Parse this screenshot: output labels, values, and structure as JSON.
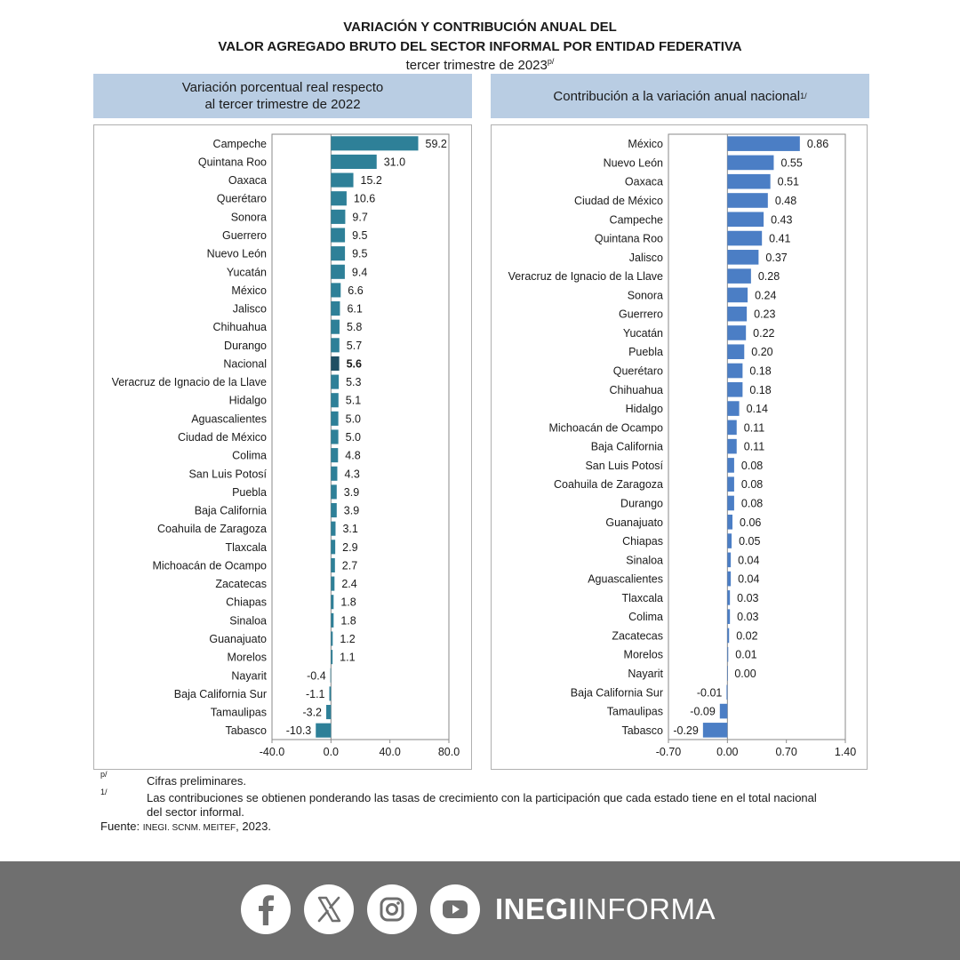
{
  "header": {
    "title_line1": "VARIACIÓN Y CONTRIBUCIÓN ANUAL DEL",
    "title_line2": "VALOR AGREGADO BRUTO DEL SECTOR INFORMAL POR ENTIDAD FEDERATIVA",
    "subtitle": "tercer trimestre de 2023",
    "subtitle_sup": "p/"
  },
  "left_panel": {
    "heading_line1": "Variación porcentual real respecto",
    "heading_line2": "al tercer trimestre de 2022"
  },
  "right_panel": {
    "heading": "Contribución a la variación anual nacional",
    "heading_sup": "1/"
  },
  "colors": {
    "left_bar": "#2e8098",
    "left_bar_highlight": "#1f4f63",
    "right_bar": "#4b7ec5",
    "panel_header": "#b9cde3",
    "footer": "#6f6f6f"
  },
  "chart_data": [
    {
      "type": "bar",
      "orientation": "horizontal",
      "highlight": "Nacional",
      "xlim": [
        -40,
        80
      ],
      "xticks": [
        "-40.0",
        "0.0",
        "40.0",
        "80.0"
      ],
      "categories": [
        "Campeche",
        "Quintana Roo",
        "Oaxaca",
        "Querétaro",
        "Sonora",
        "Guerrero",
        "Nuevo León",
        "Yucatán",
        "México",
        "Jalisco",
        "Chihuahua",
        "Durango",
        "Nacional",
        "Veracruz de Ignacio de la Llave",
        "Hidalgo",
        "Aguascalientes",
        "Ciudad de México",
        "Colima",
        "San Luis Potosí",
        "Puebla",
        "Baja California",
        "Coahuila de Zaragoza",
        "Tlaxcala",
        "Michoacán de Ocampo",
        "Zacatecas",
        "Chiapas",
        "Sinaloa",
        "Guanajuato",
        "Morelos",
        "Nayarit",
        "Baja California Sur",
        "Tamaulipas",
        "Tabasco"
      ],
      "values": [
        59.2,
        31.0,
        15.2,
        10.6,
        9.7,
        9.5,
        9.5,
        9.4,
        6.6,
        6.1,
        5.8,
        5.7,
        5.6,
        5.3,
        5.1,
        5.0,
        5.0,
        4.8,
        4.3,
        3.9,
        3.9,
        3.1,
        2.9,
        2.7,
        2.4,
        1.8,
        1.8,
        1.2,
        1.1,
        -0.4,
        -1.1,
        -3.2,
        -10.3
      ],
      "labels": [
        "59.2",
        "31.0",
        "15.2",
        "10.6",
        "9.7",
        "9.5",
        "9.5",
        "9.4",
        "6.6",
        "6.1",
        "5.8",
        "5.7",
        "5.6",
        "5.3",
        "5.1",
        "5.0",
        "5.0",
        "4.8",
        "4.3",
        "3.9",
        "3.9",
        "3.1",
        "2.9",
        "2.7",
        "2.4",
        "1.8",
        "1.8",
        "1.2",
        "1.1",
        "-0.4",
        "-1.1",
        "-3.2",
        "-10.3"
      ]
    },
    {
      "type": "bar",
      "orientation": "horizontal",
      "xlim": [
        -0.7,
        1.4
      ],
      "xticks": [
        "-0.70",
        "0.00",
        "0.70",
        "1.40"
      ],
      "categories": [
        "México",
        "Nuevo León",
        "Oaxaca",
        "Ciudad de México",
        "Campeche",
        "Quintana Roo",
        "Jalisco",
        "Veracruz de Ignacio de la Llave",
        "Sonora",
        "Guerrero",
        "Yucatán",
        "Puebla",
        "Querétaro",
        "Chihuahua",
        "Hidalgo",
        "Michoacán de Ocampo",
        "Baja California",
        "San Luis Potosí",
        "Coahuila de Zaragoza",
        "Durango",
        "Guanajuato",
        "Chiapas",
        "Sinaloa",
        "Aguascalientes",
        "Tlaxcala",
        "Colima",
        "Zacatecas",
        "Morelos",
        "Nayarit",
        "Baja California Sur",
        "Tamaulipas",
        "Tabasco"
      ],
      "values": [
        0.86,
        0.55,
        0.51,
        0.48,
        0.43,
        0.41,
        0.37,
        0.28,
        0.24,
        0.23,
        0.22,
        0.2,
        0.18,
        0.18,
        0.14,
        0.11,
        0.11,
        0.08,
        0.08,
        0.08,
        0.06,
        0.05,
        0.04,
        0.04,
        0.03,
        0.03,
        0.02,
        0.01,
        0.0,
        -0.01,
        -0.09,
        -0.29
      ],
      "labels": [
        "0.86",
        "0.55",
        "0.51",
        "0.48",
        "0.43",
        "0.41",
        "0.37",
        "0.28",
        "0.24",
        "0.23",
        "0.22",
        "0.20",
        "0.18",
        "0.18",
        "0.14",
        "0.11",
        "0.11",
        "0.08",
        "0.08",
        "0.08",
        "0.06",
        "0.05",
        "0.04",
        "0.04",
        "0.03",
        "0.03",
        "0.02",
        "0.01",
        "0.00",
        "-0.01",
        "-0.09",
        "-0.29"
      ]
    }
  ],
  "notes": {
    "note1_mark": "p/",
    "note1_text": "Cifras preliminares.",
    "note2_mark": "1/",
    "note2_text_line1": "Las contribuciones se obtienen ponderando las tasas de crecimiento con la participación que cada estado tiene en el total nacional",
    "note2_text_line2": "del sector informal.",
    "source_label": "Fuente:",
    "source_text": "INEGI. SCNM. MEITEF",
    "source_year": ", 2023."
  },
  "footer": {
    "brand_bold": "INEGI",
    "brand_light": "INFORMA",
    "icons": [
      "facebook-icon",
      "x-icon",
      "instagram-icon",
      "youtube-icon"
    ]
  }
}
